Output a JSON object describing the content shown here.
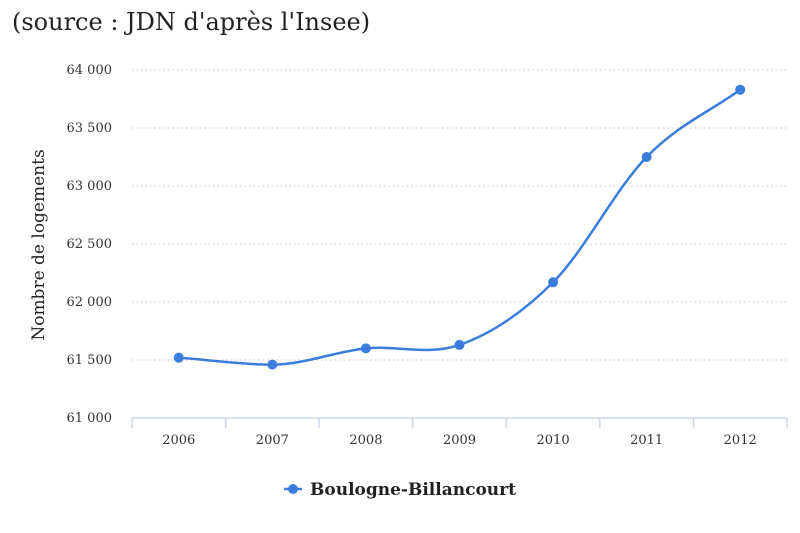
{
  "source_note": "(source : JDN d'après l'Insee)",
  "chart_data": {
    "type": "line",
    "categories": [
      "2006",
      "2007",
      "2008",
      "2009",
      "2010",
      "2011",
      "2012"
    ],
    "series": [
      {
        "name": "Boulogne-Billancourt",
        "values": [
          61520,
          61460,
          61600,
          61630,
          62170,
          63250,
          63830
        ]
      }
    ],
    "ylabel": "Nombre de logements",
    "ylim": [
      61000,
      64000
    ],
    "yticks": [
      61000,
      61500,
      62000,
      62500,
      63000,
      63500,
      64000
    ],
    "ytick_labels": [
      "61 000",
      "61 500",
      "62 000",
      "62 500",
      "63 000",
      "63 500",
      "64 000"
    ],
    "grid": true,
    "legend": "bottom-center",
    "colors": {
      "series": "#3b7ddd",
      "grid": "#c8c8c8",
      "axis": "#ccd6eb"
    }
  }
}
